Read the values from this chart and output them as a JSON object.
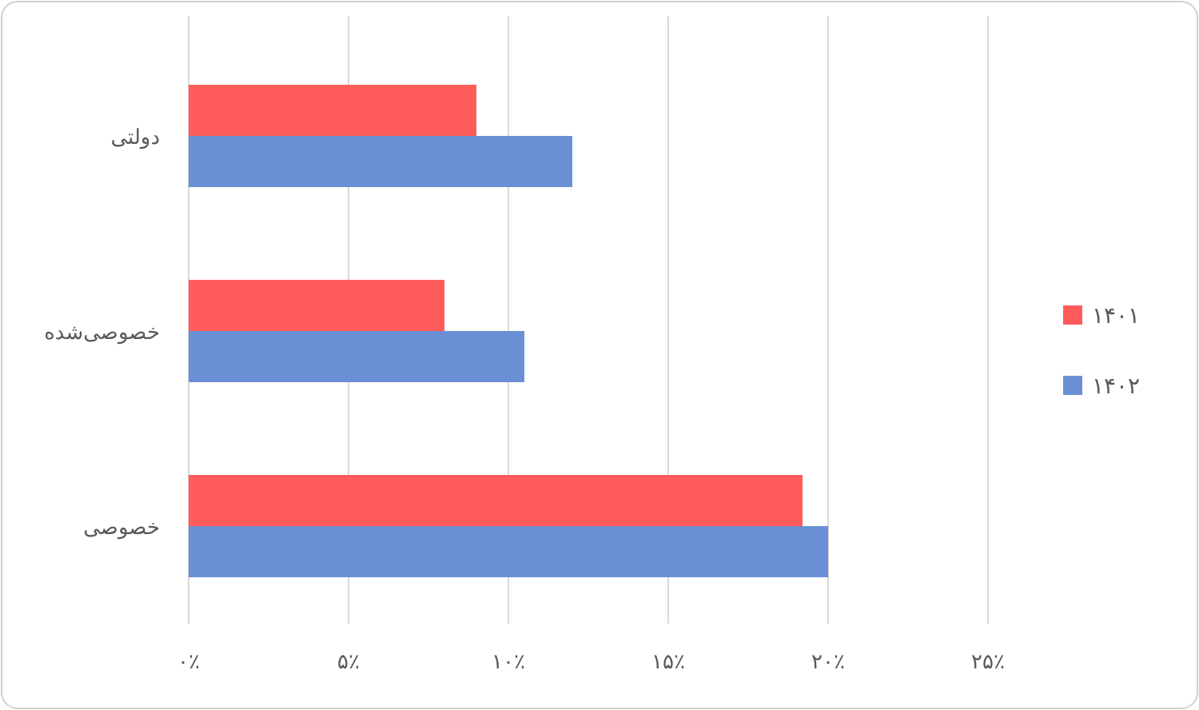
{
  "chart_data": {
    "type": "bar",
    "orientation": "horizontal",
    "categories": [
      "دولتی",
      "خصوصی‌شده",
      "خصوصی"
    ],
    "series": [
      {
        "name": "۱۴۰۱",
        "color": "#ff5b5b",
        "values": [
          9,
          8,
          19.2
        ]
      },
      {
        "name": "۱۴۰۲",
        "color": "#6a8fd4",
        "values": [
          12,
          10.5,
          20
        ]
      }
    ],
    "xlim": [
      0,
      25
    ],
    "xticks": [
      {
        "value": 0,
        "label": "۰٪"
      },
      {
        "value": 5,
        "label": "۵٪"
      },
      {
        "value": 10,
        "label": "۱۰٪"
      },
      {
        "value": 15,
        "label": "۱۵٪"
      },
      {
        "value": 20,
        "label": "۲۰٪"
      },
      {
        "value": 25,
        "label": "۲۵٪"
      }
    ],
    "grid": "x",
    "legend": "right"
  }
}
